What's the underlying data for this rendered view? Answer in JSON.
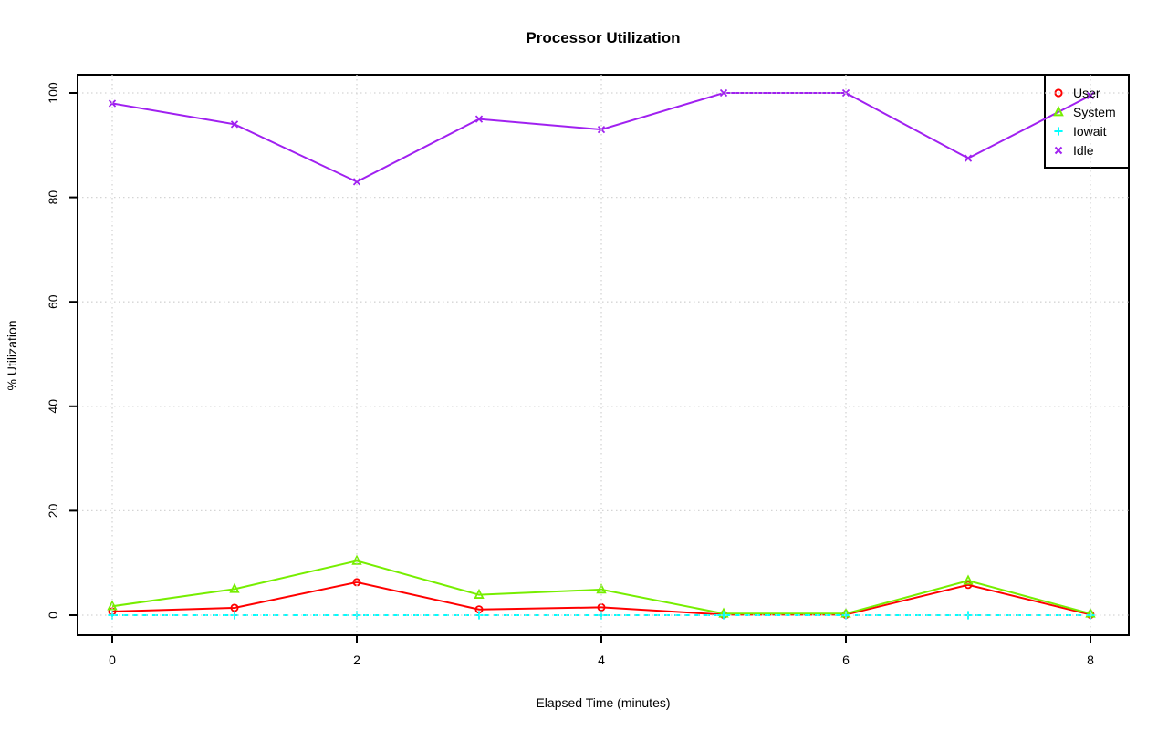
{
  "chart_data": {
    "type": "line",
    "title": "Processor Utilization",
    "xlabel": "Elapsed Time (minutes)",
    "ylabel": "% Utilization",
    "x": [
      0,
      1,
      2,
      3,
      4,
      5,
      6,
      7,
      8
    ],
    "x_ticks": [
      0,
      2,
      4,
      6,
      8
    ],
    "y_ticks": [
      0,
      20,
      40,
      60,
      80,
      100
    ],
    "xlim": [
      -0.32,
      8.32
    ],
    "ylim": [
      -4,
      104
    ],
    "grid": "dotted",
    "grid_color": "#d4d4d4",
    "legend_position": "top-right",
    "axis_color": "#000000",
    "series": [
      {
        "name": "User",
        "color": "#ff0000",
        "marker": "circle",
        "line_style": "solid",
        "values": [
          0.7,
          1.4,
          6.3,
          1.1,
          1.5,
          0.1,
          0.1,
          5.8,
          0.1
        ]
      },
      {
        "name": "System",
        "color": "#76ee00",
        "marker": "triangle",
        "line_style": "solid",
        "values": [
          1.7,
          5.0,
          10.4,
          3.9,
          4.9,
          0.3,
          0.3,
          6.6,
          0.3
        ]
      },
      {
        "name": "Iowait",
        "color": "#00ffff",
        "marker": "plus",
        "line_style": "dashed",
        "values": [
          0,
          0,
          0,
          0,
          0,
          0,
          0,
          0,
          0
        ]
      },
      {
        "name": "Idle",
        "color": "#a020f0",
        "marker": "x",
        "line_style": "solid",
        "values": [
          98,
          94,
          83,
          95,
          93,
          100,
          100,
          87.5,
          99.5
        ]
      }
    ]
  }
}
